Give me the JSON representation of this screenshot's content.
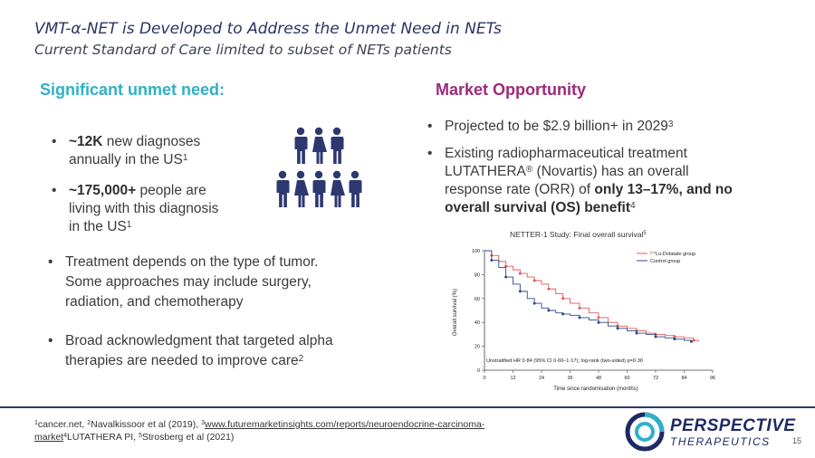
{
  "slide": {
    "title": "VMT-α-NET is Developed to Address the Unmet Need in NETs",
    "subtitle": "Current Standard of Care limited to subset of NETs patients",
    "page_number": "15"
  },
  "left": {
    "heading": "Significant unmet need:",
    "b1_strong": "~12K",
    "b1_line1": " new diagnoses",
    "b1_line2": "annually in the US",
    "b1_sup": "1",
    "b2_strong": "~175,000+",
    "b2_line1": " people are",
    "b2_line2": "living with this diagnosis",
    "b2_line3": "in the US",
    "b2_sup": "1",
    "b3_line1": "Treatment depends on the type of tumor.",
    "b3_line2": "Some approaches may include surgery,",
    "b3_line3": "radiation, and chemotherapy",
    "b4_line1": "Broad acknowledgment that targeted alpha",
    "b4_line2": "therapies are needed to improve care",
    "b4_sup": "2",
    "people_icon": "people-group-icon"
  },
  "right": {
    "heading": "Market Opportunity",
    "b1_text": "Projected to be $2.9 billion+ in 2029",
    "b1_sup": "3",
    "b2_line1": "Existing radiopharmaceutical treatment",
    "b2_line2a": "LUTATHERA",
    "b2_reg": "®",
    "b2_line2b": " (Novartis) has an overall",
    "b2_line3a": "response rate (ORR) of ",
    "b2_line3b": "only 13–17%, and no",
    "b2_line4": "overall survival (OS) benefit",
    "b2_sup": "4"
  },
  "chart_data": {
    "type": "line",
    "title": "NETTER-1 Study: Final overall survival",
    "title_sup": "5",
    "xlabel": "Time since randomisation (months)",
    "ylabel": "Overall survival (%)",
    "xlim": [
      0,
      96
    ],
    "ylim": [
      0,
      100
    ],
    "xticks": [
      0,
      12,
      24,
      36,
      48,
      60,
      72,
      84,
      96
    ],
    "yticks": [
      0,
      20,
      40,
      60,
      80,
      100
    ],
    "annotation": "Unstratified HR 0·84 (95% CI 0·60–1·17); log-rank (two-sided) p=0·30",
    "legend_position": "top-right",
    "series": [
      {
        "name": "¹⁷⁷Lu-Dotatate group",
        "color": "#e05a5a",
        "x": [
          0,
          3,
          6,
          9,
          12,
          15,
          18,
          21,
          24,
          27,
          30,
          33,
          36,
          40,
          44,
          48,
          52,
          56,
          60,
          64,
          68,
          72,
          76,
          80,
          84,
          88,
          90
        ],
        "y": [
          100,
          96,
          91,
          87,
          84,
          81,
          78,
          75,
          72,
          68,
          64,
          60,
          56,
          52,
          48,
          44,
          40,
          37,
          35,
          33,
          31,
          30,
          29,
          28,
          27,
          25,
          24
        ]
      },
      {
        "name": "Control group",
        "color": "#2f4a8c",
        "x": [
          0,
          3,
          6,
          9,
          12,
          15,
          18,
          21,
          24,
          27,
          30,
          33,
          36,
          40,
          44,
          48,
          52,
          56,
          60,
          64,
          68,
          72,
          76,
          80,
          84,
          87
        ],
        "y": [
          100,
          92,
          86,
          78,
          72,
          66,
          60,
          56,
          52,
          50,
          48,
          47,
          46,
          44,
          42,
          40,
          37,
          35,
          33,
          31,
          30,
          28,
          27,
          26,
          25,
          24
        ]
      }
    ]
  },
  "footnote": {
    "sup1": "1",
    "t1": "cancer.net, ",
    "sup2": "2",
    "t2": "Navalkissoor et al (2019), ",
    "sup3": "3",
    "link_a": "www.futuremarketinsights.com/reports/neuroendocrine-carcinoma-",
    "link_b": "market",
    "sup4": "4",
    "t4": "LUTATHERA PI, ",
    "sup5": "5",
    "t5": "Strosberg et al (2021)"
  },
  "logo": {
    "name": "PERSPECTIVE",
    "sub": "THERAPEUTICS",
    "icon": "perspective-logo-icon"
  },
  "colors": {
    "left_heading": "#2fb0c6",
    "right_heading": "#9c2a7b",
    "navy": "#2e3870"
  }
}
